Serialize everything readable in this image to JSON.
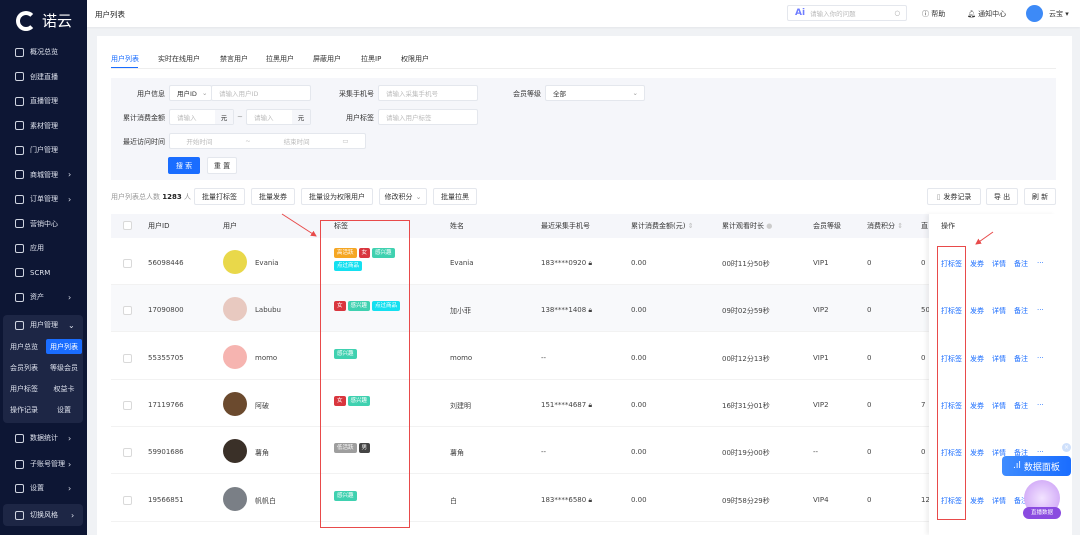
{
  "app": {
    "logo_text": "诺云"
  },
  "sidebar": {
    "items": [
      {
        "label": "概况总览",
        "icon": "dashboard-icon"
      },
      {
        "label": "创建直播",
        "icon": "calendar-plus-icon"
      },
      {
        "label": "直播管理",
        "icon": "play-icon"
      },
      {
        "label": "素材管理",
        "icon": "folder-icon"
      },
      {
        "label": "门户管理",
        "icon": "home-icon"
      },
      {
        "label": "商城管理",
        "icon": "bag-icon",
        "chevron": true
      },
      {
        "label": "订单管理",
        "icon": "order-icon",
        "chevron": true
      },
      {
        "label": "营销中心",
        "icon": "fire-icon"
      },
      {
        "label": "应用",
        "icon": "apps-icon"
      },
      {
        "label": "SCRM",
        "icon": "scrm-icon"
      },
      {
        "label": "资产",
        "icon": "wallet-icon",
        "chevron": true
      }
    ],
    "user_group": {
      "label": "用户管理",
      "subitems": [
        "用户总览",
        "用户列表",
        "会员列表",
        "等级会员",
        "用户标签",
        "权益卡",
        "操作记录",
        "设置"
      ],
      "active": "用户列表"
    },
    "bottom_items": [
      {
        "label": "数据统计",
        "icon": "pie-icon"
      },
      {
        "label": "子账号管理",
        "icon": "subaccount-icon"
      },
      {
        "label": "设置",
        "icon": "settings-icon"
      },
      {
        "label": "切换风格",
        "icon": "switch-icon"
      }
    ]
  },
  "header": {
    "title": "用户列表",
    "ai_placeholder": "请输入你的问题",
    "help": "帮助",
    "notifications": "通知中心",
    "username": "云宝"
  },
  "tabs": [
    "用户列表",
    "实时在线用户",
    "禁言用户",
    "拉黑用户",
    "屏蔽用户",
    "拉黑IP",
    "权限用户"
  ],
  "active_tab": "用户列表",
  "filters": {
    "user_info_label": "用户信息",
    "user_info_type": "用户ID",
    "user_info_placeholder": "请输入用户ID",
    "phone_label": "采集手机号",
    "phone_placeholder": "请输入采集手机号",
    "level_label": "会员等级",
    "level_value": "全部",
    "spend_label": "累计消费金额",
    "spend_min_placeholder": "请输入",
    "spend_max_placeholder": "请输入",
    "unit": "元",
    "range_sep": "~",
    "tag_label": "用户标签",
    "tag_placeholder": "请输入用户标签",
    "visit_label": "最近访问时间",
    "start_placeholder": "开始时间",
    "end_placeholder": "结束时间",
    "search": "搜 索",
    "reset": "重 置"
  },
  "toolbar": {
    "total_prefix": "用户列表总人数",
    "total": "1283",
    "total_suffix": "人",
    "batch_tag": "批量打标签",
    "batch_coupon": "批量发券",
    "batch_perm": "批量设为权限用户",
    "edit_points": "修改积分",
    "batch_block": "批量拉黑",
    "coupon_record": "发券记录",
    "export": "导 出",
    "refresh": "刷 新"
  },
  "table": {
    "headers": [
      "用户ID",
      "用户",
      "标签",
      "姓名",
      "最近采集手机号",
      "累计消费金额(元)",
      "累计观看时长",
      "会员等级",
      "消费积分",
      "直",
      "操作"
    ],
    "actions": [
      "打标签",
      "发券",
      "详情",
      "备注",
      "···"
    ],
    "rows": [
      {
        "id": "56098446",
        "user": "Evania",
        "tags": [
          [
            "高活跃",
            "#f5a623"
          ],
          [
            "女",
            "#d9363e"
          ],
          [
            "感兴趣",
            "#3fd1b0"
          ],
          [
            "点过商品",
            "#14e0f0"
          ]
        ],
        "name": "Evania",
        "phone": "183****0920",
        "locked": true,
        "spend": "0.00",
        "watch": "00时11分50秒",
        "level": "VIP1",
        "points": "0",
        "live": "0",
        "avatar": "#e9d84a"
      },
      {
        "id": "17090800",
        "user": "Labubu",
        "tags": [
          [
            "女",
            "#d9363e"
          ],
          [
            "感兴趣",
            "#3fd1b0"
          ],
          [
            "点过商品",
            "#14e0f0"
          ]
        ],
        "name": "加小菲",
        "phone": "138****1408",
        "locked": true,
        "spend": "0.00",
        "watch": "09时02分59秒",
        "level": "VIP2",
        "points": "0",
        "live": "50",
        "avatar": "#e8c9c0"
      },
      {
        "id": "55355705",
        "user": "momo",
        "tags": [
          [
            "感兴趣",
            "#3fd1b0"
          ]
        ],
        "name": "momo",
        "phone": "--",
        "locked": false,
        "spend": "0.00",
        "watch": "00时12分13秒",
        "level": "VIP1",
        "points": "0",
        "live": "0",
        "avatar": "#f6b4b0"
      },
      {
        "id": "17119766",
        "user": "阿破",
        "tags": [
          [
            "女",
            "#d9363e"
          ],
          [
            "感兴趣",
            "#3fd1b0"
          ]
        ],
        "name": "刘建明",
        "phone": "151****4687",
        "locked": true,
        "spend": "0.00",
        "watch": "16时31分01秒",
        "level": "VIP2",
        "points": "0",
        "live": "7",
        "avatar": "#6b4a2e"
      },
      {
        "id": "59901686",
        "user": "薯角",
        "tags": [
          [
            "低活跃",
            "#9e9e9e"
          ],
          [
            "男",
            "#444444"
          ]
        ],
        "name": "薯角",
        "phone": "--",
        "locked": false,
        "spend": "0.00",
        "watch": "00时19分00秒",
        "level": "--",
        "points": "0",
        "live": "0",
        "avatar": "#3a3028"
      },
      {
        "id": "19566851",
        "user": "帆帆白",
        "tags": [
          [
            "感兴趣",
            "#3fd1b0"
          ]
        ],
        "name": "白",
        "phone": "183****6580",
        "locked": true,
        "spend": "0.00",
        "watch": "09时58分29秒",
        "level": "VIP4",
        "points": "0",
        "live": "12",
        "avatar": "#7a7f86"
      }
    ]
  },
  "widgets": {
    "data_panel": "数据面板",
    "live_data": "直播数据"
  },
  "colors": {
    "accent": "#1a6dff",
    "sidebar": "#0d1634",
    "annotation": "#e84a4a"
  }
}
